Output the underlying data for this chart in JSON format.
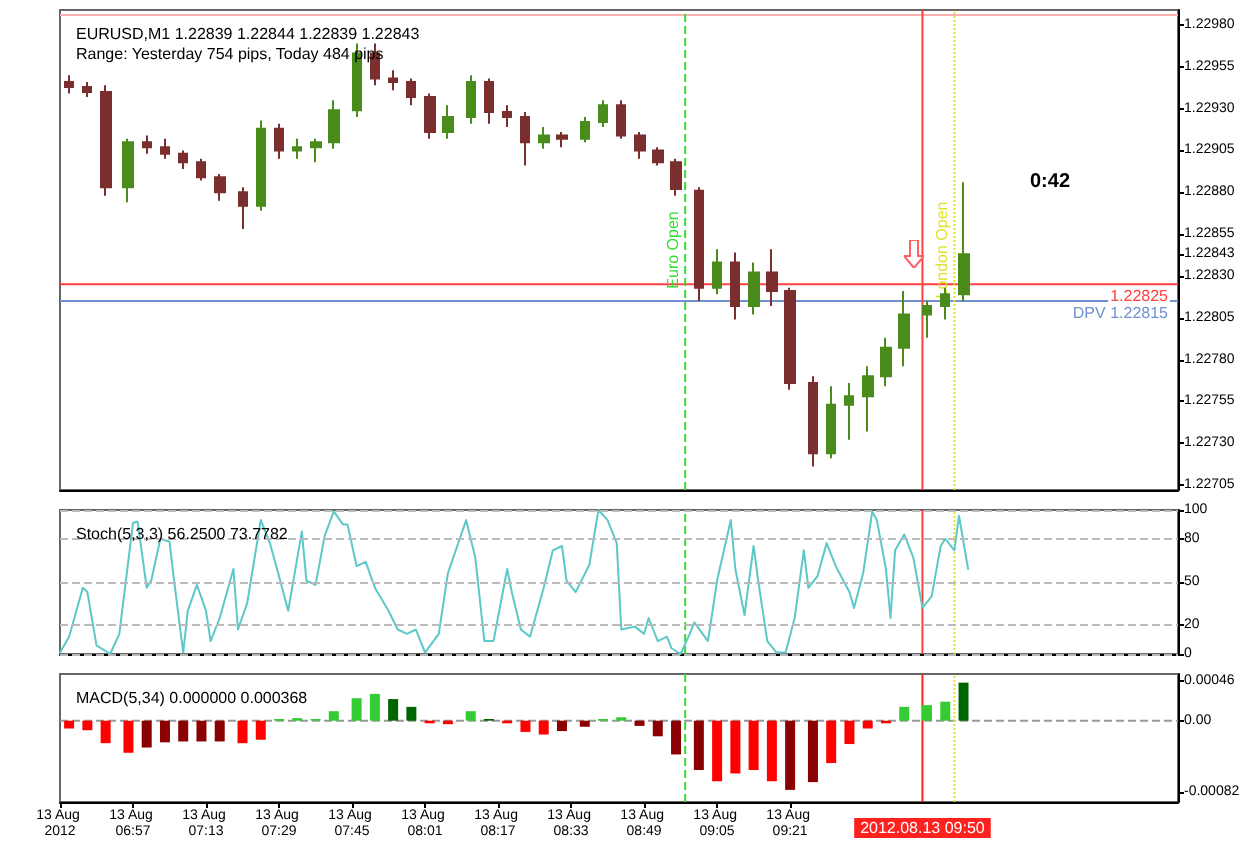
{
  "chart_data": [
    {
      "type": "candlestick",
      "title": "EURUSD,M1 1.22839 1.22844 1.22839 1.22843",
      "subtitle": "Range: Yesterday 754 pips, Today 484 pips",
      "x": [
        "2012-08-13T06:43",
        "2012-08-13T06:47",
        "2012-08-13T06:51",
        "2012-08-13T06:56",
        "2012-08-13T07:00",
        "2012-08-13T07:04",
        "2012-08-13T07:08",
        "2012-08-13T07:12",
        "2012-08-13T07:16",
        "2012-08-13T07:21",
        "2012-08-13T07:25",
        "2012-08-13T07:29",
        "2012-08-13T07:33",
        "2012-08-13T07:37",
        "2012-08-13T07:41",
        "2012-08-13T07:46",
        "2012-08-13T07:50",
        "2012-08-13T07:54",
        "2012-08-13T07:58",
        "2012-08-13T08:02",
        "2012-08-13T08:06",
        "2012-08-13T08:11",
        "2012-08-13T08:15",
        "2012-08-13T08:19",
        "2012-08-13T08:23",
        "2012-08-13T08:27",
        "2012-08-13T08:31",
        "2012-08-13T08:36",
        "2012-08-13T08:40",
        "2012-08-13T08:44",
        "2012-08-13T08:48",
        "2012-08-13T08:52",
        "2012-08-13T08:56",
        "2012-08-13T09:01",
        "2012-08-13T09:05",
        "2012-08-13T09:09",
        "2012-08-13T09:13",
        "2012-08-13T09:17",
        "2012-08-13T09:21",
        "2012-08-13T09:26",
        "2012-08-13T09:30",
        "2012-08-13T09:34",
        "2012-08-13T09:38",
        "2012-08-13T09:42",
        "2012-08-13T09:46",
        "2012-08-13T09:51",
        "2012-08-13T09:55",
        "2012-08-13T09:59"
      ],
      "ohlc": [
        [
          1.22946,
          1.2295,
          1.22939,
          1.22943
        ],
        [
          1.22943,
          1.22946,
          1.22937,
          1.2294
        ],
        [
          1.2294,
          1.22944,
          1.22878,
          1.22883
        ],
        [
          1.22883,
          1.22912,
          1.22874,
          1.2291
        ],
        [
          1.2291,
          1.22914,
          1.22903,
          1.22907
        ],
        [
          1.22907,
          1.22912,
          1.229,
          1.22903
        ],
        [
          1.22903,
          1.22905,
          1.22894,
          1.22898
        ],
        [
          1.22898,
          1.229,
          1.22887,
          1.22889
        ],
        [
          1.22889,
          1.22891,
          1.22875,
          1.2288
        ],
        [
          1.2288,
          1.22883,
          1.22858,
          1.22872
        ],
        [
          1.22872,
          1.22923,
          1.22869,
          1.22918
        ],
        [
          1.22918,
          1.22921,
          1.229,
          1.22905
        ],
        [
          1.22905,
          1.22912,
          1.229,
          1.22907
        ],
        [
          1.22907,
          1.22912,
          1.22898,
          1.2291
        ],
        [
          1.2291,
          1.22935,
          1.22906,
          1.22929
        ],
        [
          1.22929,
          1.22969,
          1.22925,
          1.22963
        ],
        [
          1.22963,
          1.22969,
          1.22944,
          1.22948
        ],
        [
          1.22948,
          1.22953,
          1.22941,
          1.22946
        ],
        [
          1.22946,
          1.22948,
          1.22932,
          1.22937
        ],
        [
          1.22937,
          1.22939,
          1.22912,
          1.22916
        ],
        [
          1.22916,
          1.22932,
          1.22912,
          1.22925
        ],
        [
          1.22925,
          1.2295,
          1.22921,
          1.22946
        ],
        [
          1.22946,
          1.22948,
          1.22921,
          1.22928
        ],
        [
          1.22928,
          1.22932,
          1.22919,
          1.22925
        ],
        [
          1.22925,
          1.22928,
          1.22896,
          1.2291
        ],
        [
          1.2291,
          1.22919,
          1.22906,
          1.22914
        ],
        [
          1.22914,
          1.22916,
          1.22907,
          1.22912
        ],
        [
          1.22912,
          1.22925,
          1.2291,
          1.22922
        ],
        [
          1.22922,
          1.22935,
          1.22919,
          1.22932
        ],
        [
          1.22932,
          1.22935,
          1.22912,
          1.22914
        ],
        [
          1.22914,
          1.22916,
          1.229,
          1.22905
        ],
        [
          1.22905,
          1.22907,
          1.22896,
          1.22898
        ],
        [
          1.22898,
          1.229,
          1.22878,
          1.22882
        ],
        [
          1.22881,
          1.22883,
          1.22815,
          1.22823
        ],
        [
          1.22823,
          1.22846,
          1.22819,
          1.22838
        ],
        [
          1.22838,
          1.22844,
          1.22804,
          1.22812
        ],
        [
          1.22812,
          1.22838,
          1.22807,
          1.22832
        ],
        [
          1.22832,
          1.22846,
          1.22812,
          1.22821
        ],
        [
          1.22821,
          1.22823,
          1.22762,
          1.22766
        ],
        [
          1.22766,
          1.2277,
          1.22716,
          1.22724
        ],
        [
          1.22724,
          1.22764,
          1.22721,
          1.22753
        ],
        [
          1.22753,
          1.22766,
          1.22732,
          1.22758
        ],
        [
          1.22758,
          1.22776,
          1.22737,
          1.2277
        ],
        [
          1.2277,
          1.22793,
          1.22764,
          1.22787
        ],
        [
          1.22787,
          1.22821,
          1.22776,
          1.22807
        ],
        [
          1.22807,
          1.22815,
          1.22793,
          1.22812
        ],
        [
          1.22812,
          1.22823,
          1.22804,
          1.22819
        ],
        [
          1.22819,
          1.22886,
          1.22815,
          1.22843
        ]
      ],
      "colors": [
        "#7a2e2e",
        "#7a2e2e",
        "#7a2e2e",
        "#4a8c1c",
        "#7a2e2e",
        "#7a2e2e",
        "#7a2e2e",
        "#7a2e2e",
        "#7a2e2e",
        "#7a2e2e",
        "#4a8c1c",
        "#7a2e2e",
        "#4a8c1c",
        "#4a8c1c",
        "#4a8c1c",
        "#4a8c1c",
        "#7a2e2e",
        "#7a2e2e",
        "#7a2e2e",
        "#7a2e2e",
        "#4a8c1c",
        "#4a8c1c",
        "#7a2e2e",
        "#7a2e2e",
        "#7a2e2e",
        "#4a8c1c",
        "#7a2e2e",
        "#4a8c1c",
        "#4a8c1c",
        "#7a2e2e",
        "#7a2e2e",
        "#7a2e2e",
        "#7a2e2e",
        "#7a2e2e",
        "#4a8c1c",
        "#7a2e2e",
        "#4a8c1c",
        "#7a2e2e",
        "#7a2e2e",
        "#7a2e2e",
        "#4a8c1c",
        "#4a8c1c",
        "#4a8c1c",
        "#4a8c1c",
        "#4a8c1c",
        "#4a8c1c",
        "#4a8c1c",
        "#4a8c1c"
      ],
      "xlim": [
        "2012-08-13T06:41",
        "2012-08-13T10:46"
      ],
      "ylim": [
        1.22702,
        1.22989
      ],
      "yticks": [
        {
          "value": 1.2298,
          "label": "1.22980"
        },
        {
          "value": 1.22955,
          "label": "1.22955"
        },
        {
          "value": 1.2293,
          "label": "1.22930"
        },
        {
          "value": 1.22905,
          "label": "1.22905"
        },
        {
          "value": 1.2288,
          "label": "1.22880"
        },
        {
          "value": 1.22855,
          "label": "1.22855"
        },
        {
          "value": 1.22843,
          "label": "1.22843"
        },
        {
          "value": 1.2283,
          "label": "1.22830"
        },
        {
          "value": 1.22805,
          "label": "1.22805"
        },
        {
          "value": 1.2278,
          "label": "1.22780"
        },
        {
          "value": 1.22755,
          "label": "1.22755"
        },
        {
          "value": 1.2273,
          "label": "1.22730"
        },
        {
          "value": 1.22705,
          "label": "1.22705"
        }
      ],
      "tick_labels": "y",
      "ref_lines": [
        {
          "axis": "y",
          "value": 1.22986,
          "color": "#ffb0b0"
        },
        {
          "axis": "y",
          "value": 1.22825,
          "label": "1.22825",
          "color": "#ff4040"
        },
        {
          "axis": "y",
          "value": 1.22815,
          "label": "DPV 1.22815",
          "color": "#7090d0"
        },
        {
          "axis": "x",
          "value": "2012-08-13T08:58",
          "label": "Euro Open",
          "color": "#33dd33",
          "line_style": "dashed"
        },
        {
          "axis": "x",
          "value": "2012-08-13T09:50",
          "color": "#ff4040"
        },
        {
          "axis": "x",
          "value": "2012-08-13T09:57",
          "label": "London Open",
          "color": "#e0e030",
          "line_style": "dotted"
        }
      ],
      "annotations": [
        "0:42"
      ]
    },
    {
      "type": "line",
      "title": "Stoch(5,3,3) 56.2500 73.7782",
      "x": [
        "2012-08-13T06:41",
        "2012-08-13T06:43",
        "2012-08-13T06:46",
        "2012-08-13T06:47",
        "2012-08-13T06:49",
        "2012-08-13T06:52",
        "2012-08-13T06:54",
        "2012-08-13T06:57",
        "2012-08-13T06:58",
        "2012-08-13T07:00",
        "2012-08-13T07:01",
        "2012-08-13T07:03",
        "2012-08-13T07:05",
        "2012-08-13T07:06",
        "2012-08-13T07:08",
        "2012-08-13T07:09",
        "2012-08-13T07:11",
        "2012-08-13T07:13",
        "2012-08-13T07:14",
        "2012-08-13T07:16",
        "2012-08-13T07:19",
        "2012-08-13T07:20",
        "2012-08-13T07:22",
        "2012-08-13T07:25",
        "2012-08-13T07:27",
        "2012-08-13T07:29",
        "2012-08-13T07:31",
        "2012-08-13T07:34",
        "2012-08-13T07:35",
        "2012-08-13T07:37",
        "2012-08-13T07:39",
        "2012-08-13T07:41",
        "2012-08-13T07:43",
        "2012-08-13T07:44",
        "2012-08-13T07:46",
        "2012-08-13T07:48",
        "2012-08-13T07:50",
        "2012-08-13T07:53",
        "2012-08-13T07:55",
        "2012-08-13T07:57",
        "2012-08-13T07:59",
        "2012-08-13T08:01",
        "2012-08-13T08:04",
        "2012-08-13T08:06",
        "2012-08-13T08:10",
        "2012-08-13T08:12",
        "2012-08-13T08:14",
        "2012-08-13T08:16",
        "2012-08-13T08:19",
        "2012-08-13T08:20",
        "2012-08-13T08:22",
        "2012-08-13T08:24",
        "2012-08-13T08:27",
        "2012-08-13T08:29",
        "2012-08-13T08:31",
        "2012-08-13T08:32",
        "2012-08-13T08:34",
        "2012-08-13T08:37",
        "2012-08-13T08:39",
        "2012-08-13T08:41",
        "2012-08-13T08:43",
        "2012-08-13T08:44",
        "2012-08-13T08:47",
        "2012-08-13T08:49",
        "2012-08-13T08:50",
        "2012-08-13T08:52",
        "2012-08-13T08:54",
        "2012-08-13T08:55",
        "2012-08-13T08:57",
        "2012-08-13T08:59",
        "2012-08-13T09:00",
        "2012-08-13T09:03",
        "2012-08-13T09:05",
        "2012-08-13T09:08",
        "2012-08-13T09:09",
        "2012-08-13T09:11",
        "2012-08-13T09:13",
        "2012-08-13T09:14",
        "2012-08-13T09:16",
        "2012-08-13T09:18",
        "2012-08-13T09:20",
        "2012-08-13T09:22",
        "2012-08-13T09:24",
        "2012-08-13T09:25",
        "2012-08-13T09:27",
        "2012-08-13T09:29",
        "2012-08-13T09:31",
        "2012-08-13T09:34",
        "2012-08-13T09:35",
        "2012-08-13T09:37",
        "2012-08-13T09:39",
        "2012-08-13T09:40",
        "2012-08-13T09:42",
        "2012-08-13T09:43",
        "2012-08-13T09:44",
        "2012-08-13T09:46",
        "2012-08-13T09:48",
        "2012-08-13T09:50",
        "2012-08-13T09:52",
        "2012-08-13T09:54",
        "2012-08-13T09:55",
        "2012-08-13T09:57",
        "2012-08-13T09:58",
        "2012-08-13T10:00"
      ],
      "series": [
        {
          "color": "#5cc8c8",
          "values": [
            1,
            12,
            46,
            43,
            6,
            0,
            14,
            91,
            92,
            46,
            51,
            80,
            78,
            51,
            1,
            30,
            48,
            30,
            9,
            25,
            59,
            17,
            35,
            93,
            77,
            54,
            30,
            85,
            51,
            48,
            82,
            99,
            90,
            90,
            61,
            64,
            46,
            30,
            17,
            14,
            17,
            1,
            14,
            56,
            93,
            67,
            9,
            9,
            59,
            43,
            17,
            12,
            46,
            72,
            75,
            51,
            43,
            62,
            100,
            93,
            77,
            17,
            19,
            14,
            25,
            9,
            12,
            4,
            0,
            14,
            22,
            9,
            51,
            93,
            59,
            27,
            75,
            51,
            9,
            1,
            1,
            25,
            72,
            46,
            54,
            77,
            61,
            43,
            32,
            56,
            99,
            93,
            59,
            25,
            72,
            83,
            67,
            32,
            40,
            75,
            80,
            72,
            96,
            59
          ]
        }
      ],
      "xlim": [
        "2012-08-13T06:41",
        "2012-08-13T10:46"
      ],
      "ylim": [
        0,
        100
      ],
      "yticks": [
        100,
        80,
        50,
        20,
        0
      ],
      "tick_labels": "y",
      "grid": "y",
      "ref_lines": [
        {
          "axis": "x",
          "value": "2012-08-13T08:58",
          "color": "#33dd33",
          "line_style": "dashed"
        },
        {
          "axis": "x",
          "value": "2012-08-13T09:50",
          "color": "#ff4040"
        },
        {
          "axis": "x",
          "value": "2012-08-13T09:57",
          "color": "#e0e030",
          "line_style": "dotted"
        }
      ]
    },
    {
      "type": "bar",
      "title": "MACD(5,34) 0.000000 0.000368",
      "x": [
        "2012-08-13T06:43",
        "2012-08-13T06:47",
        "2012-08-13T06:51",
        "2012-08-13T06:56",
        "2012-08-13T07:00",
        "2012-08-13T07:04",
        "2012-08-13T07:08",
        "2012-08-13T07:12",
        "2012-08-13T07:16",
        "2012-08-13T07:21",
        "2012-08-13T07:25",
        "2012-08-13T07:29",
        "2012-08-13T07:33",
        "2012-08-13T07:37",
        "2012-08-13T07:41",
        "2012-08-13T07:46",
        "2012-08-13T07:50",
        "2012-08-13T07:54",
        "2012-08-13T07:58",
        "2012-08-13T08:02",
        "2012-08-13T08:06",
        "2012-08-13T08:11",
        "2012-08-13T08:15",
        "2012-08-13T08:19",
        "2012-08-13T08:23",
        "2012-08-13T08:27",
        "2012-08-13T08:31",
        "2012-08-13T08:36",
        "2012-08-13T08:40",
        "2012-08-13T08:44",
        "2012-08-13T08:48",
        "2012-08-13T08:52",
        "2012-08-13T08:56",
        "2012-08-13T09:01",
        "2012-08-13T09:05",
        "2012-08-13T09:09",
        "2012-08-13T09:13",
        "2012-08-13T09:17",
        "2012-08-13T09:21",
        "2012-08-13T09:26",
        "2012-08-13T09:30",
        "2012-08-13T09:34",
        "2012-08-13T09:38",
        "2012-08-13T09:42",
        "2012-08-13T09:46",
        "2012-08-13T09:51",
        "2012-08-13T09:55",
        "2012-08-13T09:59"
      ],
      "values": [
        -9e-05,
        -0.00011,
        -0.00026,
        -0.00037,
        -0.00031,
        -0.00025,
        -0.00024,
        -0.00024,
        -0.00024,
        -0.00026,
        -0.00022,
        2e-05,
        3e-05,
        2e-05,
        0.00011,
        0.00026,
        0.00031,
        0.00025,
        0.00016,
        -3e-05,
        -4e-05,
        0.00011,
        2e-05,
        -3e-05,
        -0.00013,
        -0.00016,
        -0.00012,
        -7e-05,
        2e-05,
        4e-05,
        -6e-05,
        -0.00018,
        -0.00039,
        -0.00057,
        -0.0007,
        -0.00061,
        -0.00057,
        -0.0007,
        -0.0008,
        -0.00071,
        -0.00049,
        -0.00027,
        -9e-05,
        -3e-05,
        0.00016,
        0.00018,
        0.00022,
        0.00044
      ],
      "colors": [
        "#ff0000",
        "#ff0000",
        "#ff0000",
        "#ff0000",
        "#8b0000",
        "#8b0000",
        "#8b0000",
        "#8b0000",
        "#8b0000",
        "#ff0000",
        "#ff0000",
        "#33cc33",
        "#33cc33",
        "#33cc33",
        "#33cc33",
        "#33cc33",
        "#33cc33",
        "#006400",
        "#006400",
        "#ff0000",
        "#ff0000",
        "#33cc33",
        "#006400",
        "#ff0000",
        "#ff0000",
        "#ff0000",
        "#8b0000",
        "#8b0000",
        "#33cc33",
        "#33cc33",
        "#8b0000",
        "#8b0000",
        "#8b0000",
        "#8b0000",
        "#ff0000",
        "#ff0000",
        "#ff0000",
        "#ff0000",
        "#8b0000",
        "#8b0000",
        "#ff0000",
        "#ff0000",
        "#ff0000",
        "#ff0000",
        "#33cc33",
        "#33cc33",
        "#33cc33",
        "#006400"
      ],
      "xlim": [
        "2012-08-13T06:41",
        "2012-08-13T10:46"
      ],
      "xticks": [
        {
          "value": "2012-08-13T06:41",
          "label": "13 Aug 2012"
        },
        {
          "value": "2012-08-13T06:57",
          "label": "13 Aug 06:57"
        },
        {
          "value": "2012-08-13T07:13",
          "label": "13 Aug 07:13"
        },
        {
          "value": "2012-08-13T07:29",
          "label": "13 Aug 07:29"
        },
        {
          "value": "2012-08-13T07:45",
          "label": "13 Aug 07:45"
        },
        {
          "value": "2012-08-13T08:01",
          "label": "13 Aug 08:01"
        },
        {
          "value": "2012-08-13T08:17",
          "label": "13 Aug 08:17"
        },
        {
          "value": "2012-08-13T08:33",
          "label": "13 Aug 08:33"
        },
        {
          "value": "2012-08-13T08:49",
          "label": "13 Aug 08:49"
        },
        {
          "value": "2012-08-13T09:05",
          "label": "13 Aug 09:05"
        },
        {
          "value": "2012-08-13T09:21",
          "label": "13 Aug 09:21"
        }
      ],
      "ylim": [
        -0.00094,
        0.00054
      ],
      "yticks": [
        {
          "value": 0.00046,
          "label": "0.00046"
        },
        {
          "value": 0,
          "label": "0.00"
        },
        {
          "value": -0.00082,
          "label": "-0.00082"
        }
      ],
      "ref_lines": [
        {
          "axis": "y",
          "value": 0,
          "color": "#999999",
          "line_style": "dashed"
        },
        {
          "axis": "x",
          "value": "2012-08-13T08:58",
          "color": "#33dd33",
          "line_style": "dashed"
        },
        {
          "axis": "x",
          "value": "2012-08-13T09:50",
          "label": "2012.08.13 09:50",
          "color": "#ff2020"
        },
        {
          "axis": "x",
          "value": "2012-08-13T09:57",
          "color": "#e0e030",
          "line_style": "dotted"
        }
      ]
    }
  ]
}
